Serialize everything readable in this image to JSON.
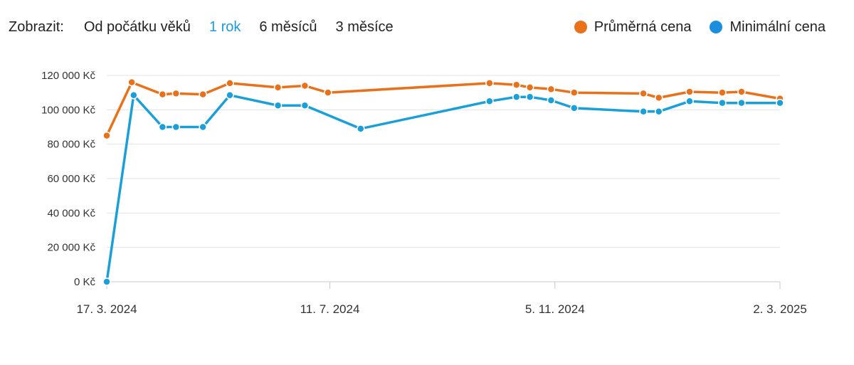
{
  "toolbar": {
    "label": "Zobrazit:",
    "ranges": [
      {
        "label": "Od počátku věků",
        "active": false
      },
      {
        "label": "1 rok",
        "active": true
      },
      {
        "label": "6 měsíců",
        "active": false
      },
      {
        "label": "3 měsíce",
        "active": false
      }
    ]
  },
  "legend": [
    {
      "label": "Průměrná cena",
      "color": "#e8711a"
    },
    {
      "label": "Minimální cena",
      "color": "#1a8fe0"
    }
  ],
  "chart_data": {
    "type": "line",
    "title": "",
    "xlabel": "",
    "ylabel": "",
    "x_ticks": [
      "17. 3. 2024",
      "11. 7. 2024",
      "5. 11. 2024",
      "2. 3. 2025"
    ],
    "x_tick_dates": [
      "2024-03-17",
      "2024-07-11",
      "2024-11-05",
      "2025-03-02"
    ],
    "y_ticks": [
      0,
      20000,
      40000,
      60000,
      80000,
      100000,
      120000
    ],
    "y_tick_labels": [
      "0 Kč",
      "20 000 Kč",
      "40 000 Kč",
      "60 000 Kč",
      "80 000 Kč",
      "100 000 Kč",
      "120 000 Kč"
    ],
    "ylim": [
      0,
      120000
    ],
    "xlim": [
      "2024-03-17",
      "2025-03-02"
    ],
    "grid": true,
    "legend_position": "top-right",
    "series": [
      {
        "name": "Průměrná cena",
        "color": "#e8711a",
        "points": [
          {
            "x": "2024-03-17",
            "y": 85000
          },
          {
            "x": "2024-03-30",
            "y": 116000
          },
          {
            "x": "2024-04-15",
            "y": 109000
          },
          {
            "x": "2024-04-22",
            "y": 109500
          },
          {
            "x": "2024-05-06",
            "y": 109000
          },
          {
            "x": "2024-05-20",
            "y": 115500
          },
          {
            "x": "2024-06-14",
            "y": 113000
          },
          {
            "x": "2024-06-28",
            "y": 114000
          },
          {
            "x": "2024-07-10",
            "y": 110000
          },
          {
            "x": "2024-10-02",
            "y": 115500
          },
          {
            "x": "2024-10-16",
            "y": 114500
          },
          {
            "x": "2024-10-23",
            "y": 113000
          },
          {
            "x": "2024-11-03",
            "y": 112000
          },
          {
            "x": "2024-11-15",
            "y": 110000
          },
          {
            "x": "2024-12-21",
            "y": 109500
          },
          {
            "x": "2024-12-29",
            "y": 107000
          },
          {
            "x": "2025-01-14",
            "y": 110500
          },
          {
            "x": "2025-01-31",
            "y": 110000
          },
          {
            "x": "2025-02-10",
            "y": 110500
          },
          {
            "x": "2025-03-02",
            "y": 106500
          }
        ]
      },
      {
        "name": "Minimální cena",
        "color": "#1aa0d8",
        "points": [
          {
            "x": "2024-03-17",
            "y": 0
          },
          {
            "x": "2024-03-31",
            "y": 108500
          },
          {
            "x": "2024-04-15",
            "y": 90000
          },
          {
            "x": "2024-04-22",
            "y": 90000
          },
          {
            "x": "2024-05-06",
            "y": 90000
          },
          {
            "x": "2024-05-20",
            "y": 108500
          },
          {
            "x": "2024-06-14",
            "y": 102500
          },
          {
            "x": "2024-06-28",
            "y": 102500
          },
          {
            "x": "2024-07-27",
            "y": 89000
          },
          {
            "x": "2024-10-02",
            "y": 105000
          },
          {
            "x": "2024-10-16",
            "y": 107500
          },
          {
            "x": "2024-10-23",
            "y": 107500
          },
          {
            "x": "2024-11-03",
            "y": 105500
          },
          {
            "x": "2024-11-15",
            "y": 101000
          },
          {
            "x": "2024-12-21",
            "y": 99000
          },
          {
            "x": "2024-12-29",
            "y": 99000
          },
          {
            "x": "2025-01-14",
            "y": 105000
          },
          {
            "x": "2025-01-31",
            "y": 104000
          },
          {
            "x": "2025-02-10",
            "y": 104000
          },
          {
            "x": "2025-03-02",
            "y": 104000
          }
        ]
      }
    ]
  }
}
